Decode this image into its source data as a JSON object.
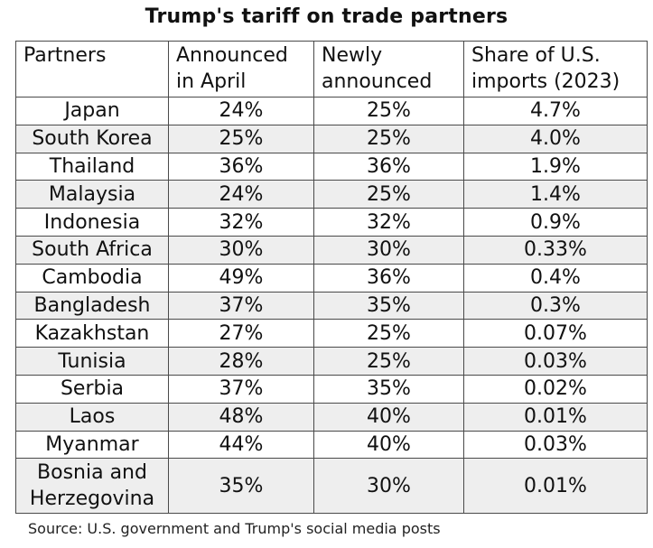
{
  "chart_data": {
    "type": "table",
    "title": "Trump's tariff on trade partners",
    "columns": [
      "Partners",
      "Announced in April",
      "Newly announced",
      "Share of U.S. imports (2023)"
    ],
    "header_lines": [
      [
        "Partners",
        ""
      ],
      [
        "Announced",
        "in April"
      ],
      [
        "Newly",
        "announced"
      ],
      [
        "Share of U.S.",
        "imports (2023)"
      ]
    ],
    "rows": [
      {
        "partner": "Japan",
        "april": "24%",
        "new": "25%",
        "share": "4.7%"
      },
      {
        "partner": "South Korea",
        "april": "25%",
        "new": "25%",
        "share": "4.0%"
      },
      {
        "partner": "Thailand",
        "april": "36%",
        "new": "36%",
        "share": "1.9%"
      },
      {
        "partner": "Malaysia",
        "april": "24%",
        "new": "25%",
        "share": "1.4%"
      },
      {
        "partner": "Indonesia",
        "april": "32%",
        "new": "32%",
        "share": "0.9%"
      },
      {
        "partner": "South Africa",
        "april": "30%",
        "new": "30%",
        "share": "0.33%"
      },
      {
        "partner": "Cambodia",
        "april": "49%",
        "new": "36%",
        "share": "0.4%"
      },
      {
        "partner": "Bangladesh",
        "april": "37%",
        "new": "35%",
        "share": "0.3%"
      },
      {
        "partner": "Kazakhstan",
        "april": "27%",
        "new": "25%",
        "share": "0.07%"
      },
      {
        "partner": "Tunisia",
        "april": "28%",
        "new": "25%",
        "share": "0.03%"
      },
      {
        "partner": "Serbia",
        "april": "37%",
        "new": "35%",
        "share": "0.02%"
      },
      {
        "partner": "Laos",
        "april": "48%",
        "new": "40%",
        "share": "0.01%"
      },
      {
        "partner": "Myanmar",
        "april": "44%",
        "new": "40%",
        "share": "0.03%"
      },
      {
        "partner": "Bosnia and Herzegovina",
        "partner_lines": [
          "Bosnia and",
          "Herzegovina"
        ],
        "april": "35%",
        "new": "30%",
        "share": "0.01%"
      }
    ],
    "source": "Source: U.S. government and Trump's social media posts"
  },
  "colors": {
    "shaded_row": "#eeeeee",
    "border": "#4a4a4a",
    "text": "#111111"
  }
}
